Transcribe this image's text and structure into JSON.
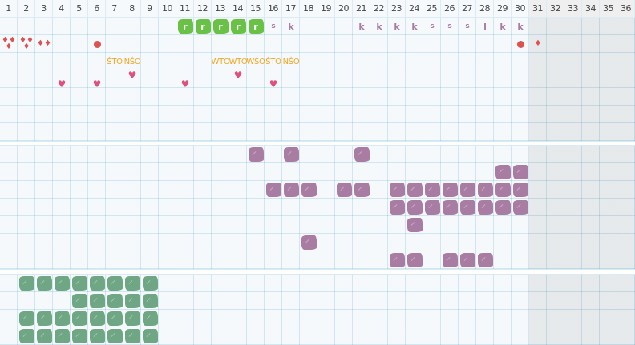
{
  "header": {
    "days": [
      "1",
      "2",
      "3",
      "4",
      "5",
      "6",
      "7",
      "8",
      "9",
      "10",
      "11",
      "12",
      "13",
      "14",
      "15",
      "16",
      "17",
      "18",
      "19",
      "20",
      "21",
      "22",
      "23",
      "24",
      "25",
      "26",
      "27",
      "28",
      "29",
      "30",
      "31",
      "32",
      "33",
      "34",
      "35",
      "36"
    ],
    "active_days": 30
  },
  "colors": {
    "green_r": "#69c145",
    "purple": "#a97ca3",
    "teal": "#6fa785",
    "orange": "#f5a623",
    "red": "#e05050",
    "heart": "#e0507a",
    "grid": "#d8ebf5",
    "inactive": "#efefef"
  },
  "sections": [
    {
      "name": "section-symbols",
      "rows": 7,
      "items": [
        {
          "row": 0,
          "day": 11,
          "type": "green-r",
          "text": "r"
        },
        {
          "row": 0,
          "day": 12,
          "type": "green-r",
          "text": "r"
        },
        {
          "row": 0,
          "day": 13,
          "type": "green-r",
          "text": "r"
        },
        {
          "row": 0,
          "day": 14,
          "type": "green-r",
          "text": "r"
        },
        {
          "row": 0,
          "day": 15,
          "type": "green-r",
          "text": "r"
        },
        {
          "row": 0,
          "day": 16,
          "type": "letter",
          "text": "s"
        },
        {
          "row": 0,
          "day": 17,
          "type": "letter",
          "text": "k"
        },
        {
          "row": 0,
          "day": 21,
          "type": "letter",
          "text": "k"
        },
        {
          "row": 0,
          "day": 22,
          "type": "letter",
          "text": "k"
        },
        {
          "row": 0,
          "day": 23,
          "type": "letter",
          "text": "k"
        },
        {
          "row": 0,
          "day": 24,
          "type": "letter",
          "text": "k"
        },
        {
          "row": 0,
          "day": 25,
          "type": "letter",
          "text": "s"
        },
        {
          "row": 0,
          "day": 26,
          "type": "letter",
          "text": "s"
        },
        {
          "row": 0,
          "day": 27,
          "type": "letter",
          "text": "s"
        },
        {
          "row": 0,
          "day": 28,
          "type": "letter",
          "text": "l"
        },
        {
          "row": 0,
          "day": 29,
          "type": "letter",
          "text": "k"
        },
        {
          "row": 0,
          "day": 30,
          "type": "letter",
          "text": "k"
        },
        {
          "row": 1,
          "day": 1,
          "type": "drops",
          "count": 3
        },
        {
          "row": 1,
          "day": 2,
          "type": "drops",
          "count": 3
        },
        {
          "row": 1,
          "day": 3,
          "type": "drops",
          "count": 2
        },
        {
          "row": 1,
          "day": 6,
          "type": "dot"
        },
        {
          "row": 1,
          "day": 30,
          "type": "dot"
        },
        {
          "row": 1,
          "day": 31,
          "type": "drops",
          "count": 1
        },
        {
          "row": 2,
          "day": 7,
          "type": "otext",
          "text": "ŚTO"
        },
        {
          "row": 2,
          "day": 8,
          "type": "otext",
          "text": "NŚO"
        },
        {
          "row": 2,
          "day": 13,
          "type": "otext",
          "text": "WTO"
        },
        {
          "row": 2,
          "day": 14,
          "type": "otext",
          "text": "WTO"
        },
        {
          "row": 2,
          "day": 15,
          "type": "otext",
          "text": "WŚO"
        },
        {
          "row": 2,
          "day": 16,
          "type": "otext",
          "text": "ŚTO"
        },
        {
          "row": 2,
          "day": 17,
          "type": "otext",
          "text": "NŚO"
        },
        {
          "row": 3,
          "day": 8,
          "type": "heart"
        },
        {
          "row": 3,
          "day": 14,
          "type": "heart"
        },
        {
          "row": 3,
          "day": 4,
          "type": "heart"
        },
        {
          "row": 3,
          "day": 6,
          "type": "heart"
        },
        {
          "row": 3,
          "day": 11,
          "type": "heart"
        },
        {
          "row": 3,
          "day": 16,
          "type": "heart"
        }
      ]
    },
    {
      "name": "section-purple",
      "rows": 7,
      "cells": [
        {
          "row": 0,
          "days": [
            15,
            17,
            21
          ]
        },
        {
          "row": 1,
          "days": [
            29,
            30
          ]
        },
        {
          "row": 2,
          "days": [
            16,
            17,
            18,
            20,
            21,
            23,
            24,
            25,
            26,
            27,
            28,
            29,
            30
          ]
        },
        {
          "row": 3,
          "days": [
            23,
            24,
            25,
            26,
            27,
            28,
            29,
            30
          ]
        },
        {
          "row": 4,
          "days": [
            24
          ]
        },
        {
          "row": 5,
          "days": [
            18
          ]
        },
        {
          "row": 6,
          "days": [
            23,
            24,
            26,
            27,
            28
          ]
        }
      ],
      "type": "purple"
    },
    {
      "name": "section-teal",
      "rows": 4,
      "cells": [
        {
          "row": 0,
          "days": [
            2,
            3,
            4,
            5,
            6,
            7,
            8,
            9
          ]
        },
        {
          "row": 1,
          "days": [
            5,
            6,
            7,
            8,
            9
          ]
        },
        {
          "row": 2,
          "days": [
            2,
            3,
            4,
            5,
            6,
            7,
            8,
            9
          ]
        },
        {
          "row": 3,
          "days": [
            2,
            3,
            4,
            5,
            6,
            7,
            8,
            9
          ]
        }
      ],
      "type": "teal"
    }
  ]
}
